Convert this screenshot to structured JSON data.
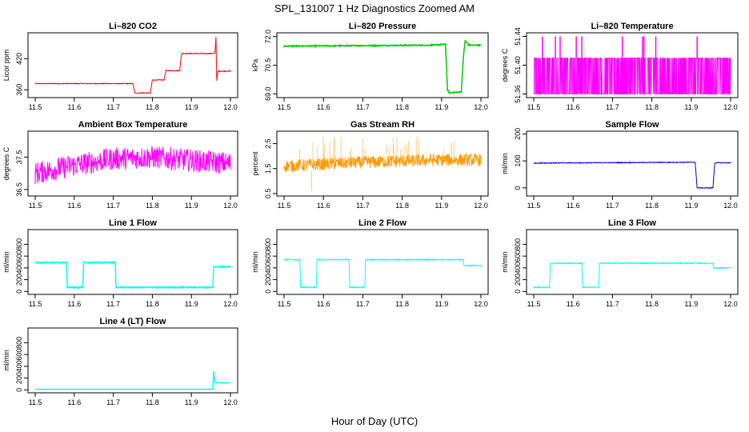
{
  "title": "SPL_131007  1 Hz Diagnostics Zoomed AM",
  "xlabel": "Hour of Day (UTC)",
  "chart_data": [
    {
      "type": "line",
      "title": "Li–820 CO2",
      "ylabel": "Licor ppm",
      "color": "#ff0000",
      "xlim": [
        11.5,
        12.0
      ],
      "ylim": [
        345,
        470
      ],
      "yticks": [
        360,
        420
      ],
      "x": [
        11.5,
        11.75,
        11.755,
        11.795,
        11.8,
        11.83,
        11.835,
        11.87,
        11.875,
        11.96,
        11.963,
        11.965,
        11.968,
        12.0
      ],
      "y": [
        372,
        372,
        354,
        354,
        379,
        379,
        397,
        397,
        430,
        430,
        462,
        378,
        396,
        396
      ],
      "noise": 0.8
    },
    {
      "type": "line",
      "title": "Li–820 Pressure",
      "ylabel": "kPa",
      "color": "#00cc00",
      "xlim": [
        11.5,
        12.0
      ],
      "ylim": [
        68.8,
        72.2
      ],
      "yticks": [
        69.0,
        70.5,
        72.0
      ],
      "x": [
        11.5,
        11.88,
        11.91,
        11.915,
        11.92,
        11.95,
        11.955,
        11.96,
        11.963,
        11.97,
        12.0
      ],
      "y": [
        71.5,
        71.55,
        71.6,
        69.2,
        69.05,
        69.1,
        70.8,
        71.8,
        71.7,
        71.55,
        71.55
      ],
      "noise": 0.03
    },
    {
      "type": "line",
      "title": "Li–820 Temperature",
      "ylabel": "degrees C",
      "color": "#ff00ff",
      "xlim": [
        11.5,
        12.0
      ],
      "ylim": [
        51.355,
        51.445
      ],
      "yticks": [
        51.36,
        51.4,
        51.44
      ],
      "x": [
        11.5,
        12.0
      ],
      "y": [
        51.41,
        51.41
      ],
      "band": [
        51.36,
        51.41
      ],
      "spikes": [
        11.522,
        11.555,
        11.567,
        11.608,
        11.622,
        11.725,
        11.776,
        11.78,
        11.81,
        11.915
      ],
      "spike_to": 51.44
    },
    {
      "type": "line",
      "title": "Ambient Box Temperature",
      "ylabel": "degrees C",
      "color": "#ff00ff",
      "xlim": [
        11.5,
        12.0
      ],
      "ylim": [
        36.3,
        38.3
      ],
      "yticks": [
        36.5,
        37.5
      ],
      "x": [
        11.5,
        11.6,
        11.7,
        11.8,
        11.9,
        12.0
      ],
      "y": [
        37.0,
        37.25,
        37.45,
        37.5,
        37.4,
        37.3
      ],
      "noise": 0.35
    },
    {
      "type": "line",
      "title": "Gas Stream RH",
      "ylabel": "percent",
      "color": "#ff9900",
      "xlim": [
        11.5,
        12.0
      ],
      "ylim": [
        0.4,
        3.0
      ],
      "yticks": [
        0.5,
        1.5,
        2.5
      ],
      "x": [
        11.5,
        11.7,
        11.9,
        12.0
      ],
      "y": [
        1.6,
        1.75,
        1.85,
        1.85
      ],
      "noise": 0.25
    },
    {
      "type": "line",
      "title": "Sample Flow",
      "ylabel": "ml/min",
      "color": "#0000cc",
      "xlim": [
        11.5,
        12.0
      ],
      "ylim": [
        -30,
        210
      ],
      "yticks": [
        0,
        100,
        200
      ],
      "x": [
        11.5,
        11.91,
        11.915,
        11.955,
        11.96,
        12.0
      ],
      "y": [
        92,
        95,
        0,
        0,
        93,
        93
      ],
      "noise": 1.5
    },
    {
      "type": "line",
      "title": "Line 1 Flow",
      "ylabel": "ml/min",
      "color": "#00ffff",
      "xlim": [
        11.5,
        12.0
      ],
      "ylim": [
        -50,
        1050
      ],
      "yticks": [
        0,
        200,
        400,
        600,
        800
      ],
      "x": [
        11.5,
        11.58,
        11.582,
        11.622,
        11.624,
        11.705,
        11.707,
        11.955,
        11.957,
        12.0
      ],
      "y": [
        490,
        490,
        70,
        70,
        490,
        490,
        70,
        70,
        420,
        420
      ],
      "noise": 10
    },
    {
      "type": "line",
      "title": "Line 2 Flow",
      "ylabel": "ml/min",
      "color": "#00ffff",
      "xlim": [
        11.5,
        12.0
      ],
      "ylim": [
        -50,
        1050
      ],
      "yticks": [
        0,
        200,
        400,
        600,
        800
      ],
      "x": [
        11.5,
        11.54,
        11.542,
        11.582,
        11.584,
        11.665,
        11.667,
        11.705,
        11.707,
        11.955,
        11.957,
        12.0
      ],
      "y": [
        540,
        540,
        70,
        70,
        540,
        540,
        70,
        70,
        540,
        540,
        440,
        440
      ],
      "noise": 10
    },
    {
      "type": "line",
      "title": "Line 3 Flow",
      "ylabel": "ml/min",
      "color": "#00ffff",
      "xlim": [
        11.5,
        12.0
      ],
      "ylim": [
        -50,
        1050
      ],
      "yticks": [
        0,
        200,
        400,
        600,
        800
      ],
      "x": [
        11.5,
        11.54,
        11.542,
        11.622,
        11.624,
        11.665,
        11.667,
        11.955,
        11.957,
        12.0
      ],
      "y": [
        70,
        70,
        480,
        480,
        70,
        70,
        480,
        480,
        400,
        400
      ],
      "noise": 10
    },
    {
      "type": "line",
      "title": "Line 4 (LT) Flow",
      "ylabel": "ml/min",
      "color": "#00ffff",
      "xlim": [
        11.5,
        12.0
      ],
      "ylim": [
        -50,
        1050
      ],
      "yticks": [
        0,
        200,
        400,
        600,
        800
      ],
      "x": [
        11.5,
        11.955,
        11.957,
        11.96,
        11.962,
        12.0
      ],
      "y": [
        10,
        10,
        320,
        120,
        120,
        120
      ],
      "noise": 0
    }
  ],
  "xticks": [
    11.5,
    11.6,
    11.7,
    11.8,
    11.9,
    12.0
  ],
  "xtick_labels": [
    "11.5",
    "11.6",
    "11.7",
    "11.8",
    "11.9",
    "12.0"
  ]
}
